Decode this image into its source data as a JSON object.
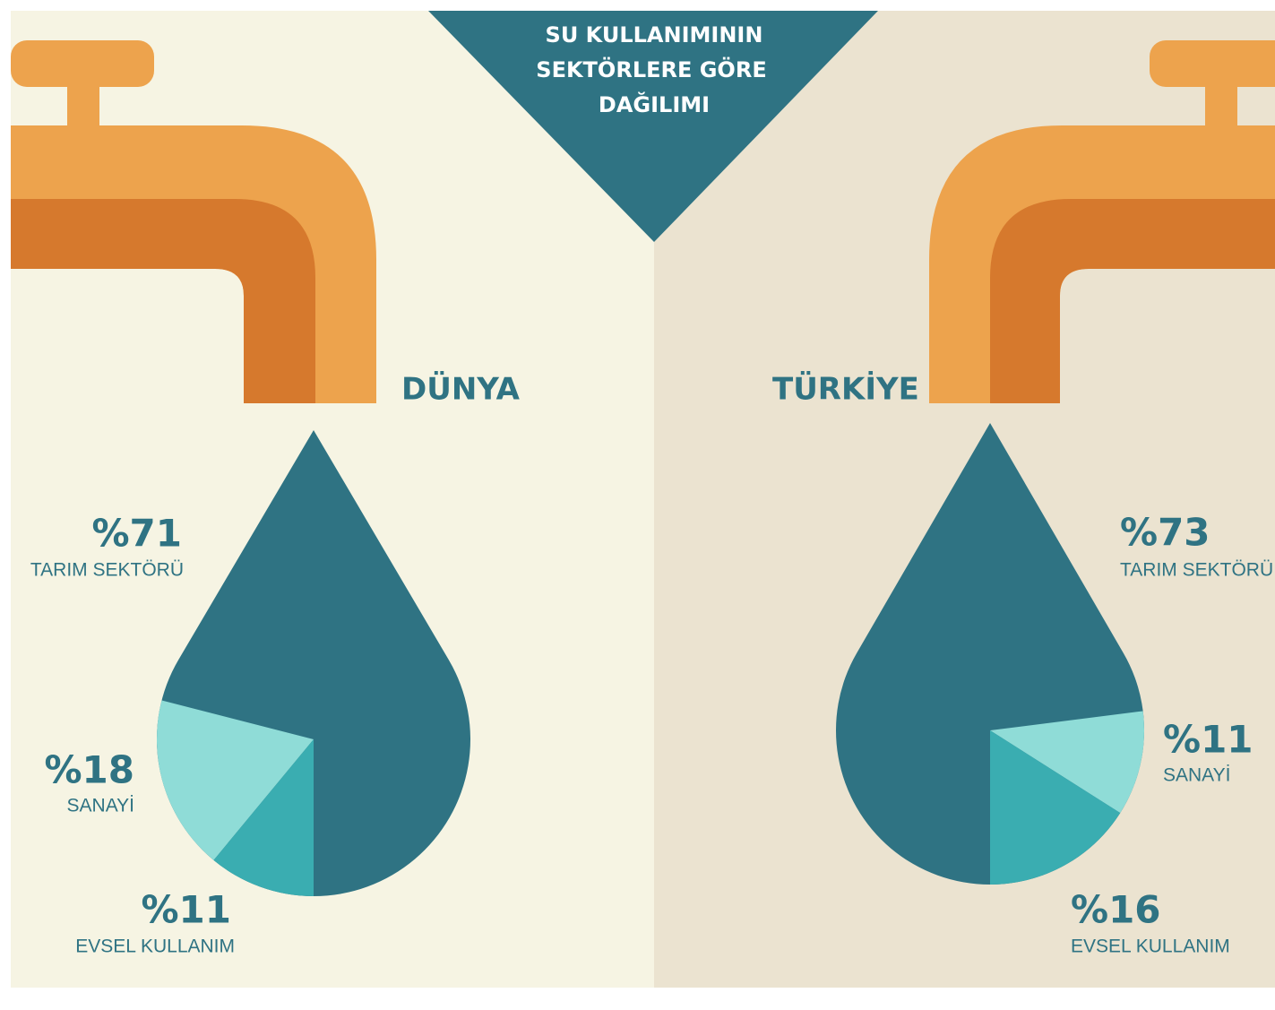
{
  "title": [
    "SU KULLANIMININ",
    "SEKTÖRLERE GÖRE",
    "DAĞILIMI"
  ],
  "chart_data": [
    {
      "type": "pie",
      "title": "DÜNYA",
      "categories": [
        "TARIM SEKTÖRÜ",
        "SANAYİ",
        "EVSEL KULLANIM"
      ],
      "values": [
        71,
        18,
        11
      ],
      "value_labels": [
        "%71",
        "%18",
        "%11"
      ],
      "colors": [
        "#2f7383",
        "#8fdcd7",
        "#3aadb1"
      ]
    },
    {
      "type": "pie",
      "title": "TÜRKİYE",
      "categories": [
        "TARIM SEKTÖRÜ",
        "SANAYİ",
        "EVSEL KULLANIM"
      ],
      "values": [
        73,
        11,
        16
      ],
      "value_labels": [
        "%73",
        "%11",
        "%16"
      ],
      "colors": [
        "#2f7383",
        "#8fdcd7",
        "#3aadb1"
      ]
    }
  ]
}
